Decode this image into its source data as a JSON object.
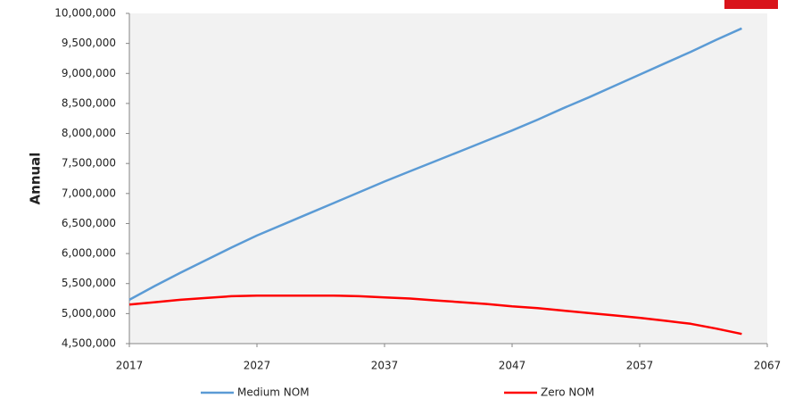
{
  "chart_data": {
    "type": "line",
    "ylabel": "Annual",
    "x": [
      2017,
      2019,
      2021,
      2023,
      2025,
      2027,
      2029,
      2031,
      2033,
      2035,
      2037,
      2039,
      2041,
      2043,
      2045,
      2047,
      2049,
      2051,
      2053,
      2055,
      2057,
      2059,
      2061,
      2063,
      2065
    ],
    "series": [
      {
        "name": "Medium NOM",
        "color": "#5b9bd5",
        "values": [
          5230000,
          5460000,
          5680000,
          5890000,
          6100000,
          6300000,
          6480000,
          6660000,
          6840000,
          7020000,
          7200000,
          7370000,
          7540000,
          7710000,
          7880000,
          8050000,
          8230000,
          8420000,
          8600000,
          8790000,
          8980000,
          9170000,
          9360000,
          9560000,
          9750000
        ]
      },
      {
        "name": "Zero NOM",
        "color": "#ff0000",
        "values": [
          5150000,
          5190000,
          5230000,
          5260000,
          5290000,
          5300000,
          5300000,
          5300000,
          5300000,
          5290000,
          5270000,
          5250000,
          5220000,
          5190000,
          5160000,
          5120000,
          5090000,
          5050000,
          5010000,
          4970000,
          4930000,
          4880000,
          4830000,
          4750000,
          4660000
        ]
      }
    ],
    "xlim": [
      2017,
      2067
    ],
    "xticks": [
      2017,
      2027,
      2037,
      2047,
      2057,
      2067
    ],
    "ylim": [
      4500000,
      10000000
    ],
    "yticks": [
      {
        "value": 4500000,
        "label": "4,500,000"
      },
      {
        "value": 5000000,
        "label": "5,000,000"
      },
      {
        "value": 5500000,
        "label": "5,500,000"
      },
      {
        "value": 6000000,
        "label": "6,000,000"
      },
      {
        "value": 6500000,
        "label": "6,500,000"
      },
      {
        "value": 7000000,
        "label": "7,000,000"
      },
      {
        "value": 7500000,
        "label": "7,500,000"
      },
      {
        "value": 8000000,
        "label": "8,000,000"
      },
      {
        "value": 8500000,
        "label": "8,500,000"
      },
      {
        "value": 9000000,
        "label": "9,000,000"
      },
      {
        "value": 9500000,
        "label": "9,500,000"
      },
      {
        "value": 10000000,
        "label": "10,000,000"
      }
    ],
    "grid": false,
    "legend": "bottom"
  }
}
